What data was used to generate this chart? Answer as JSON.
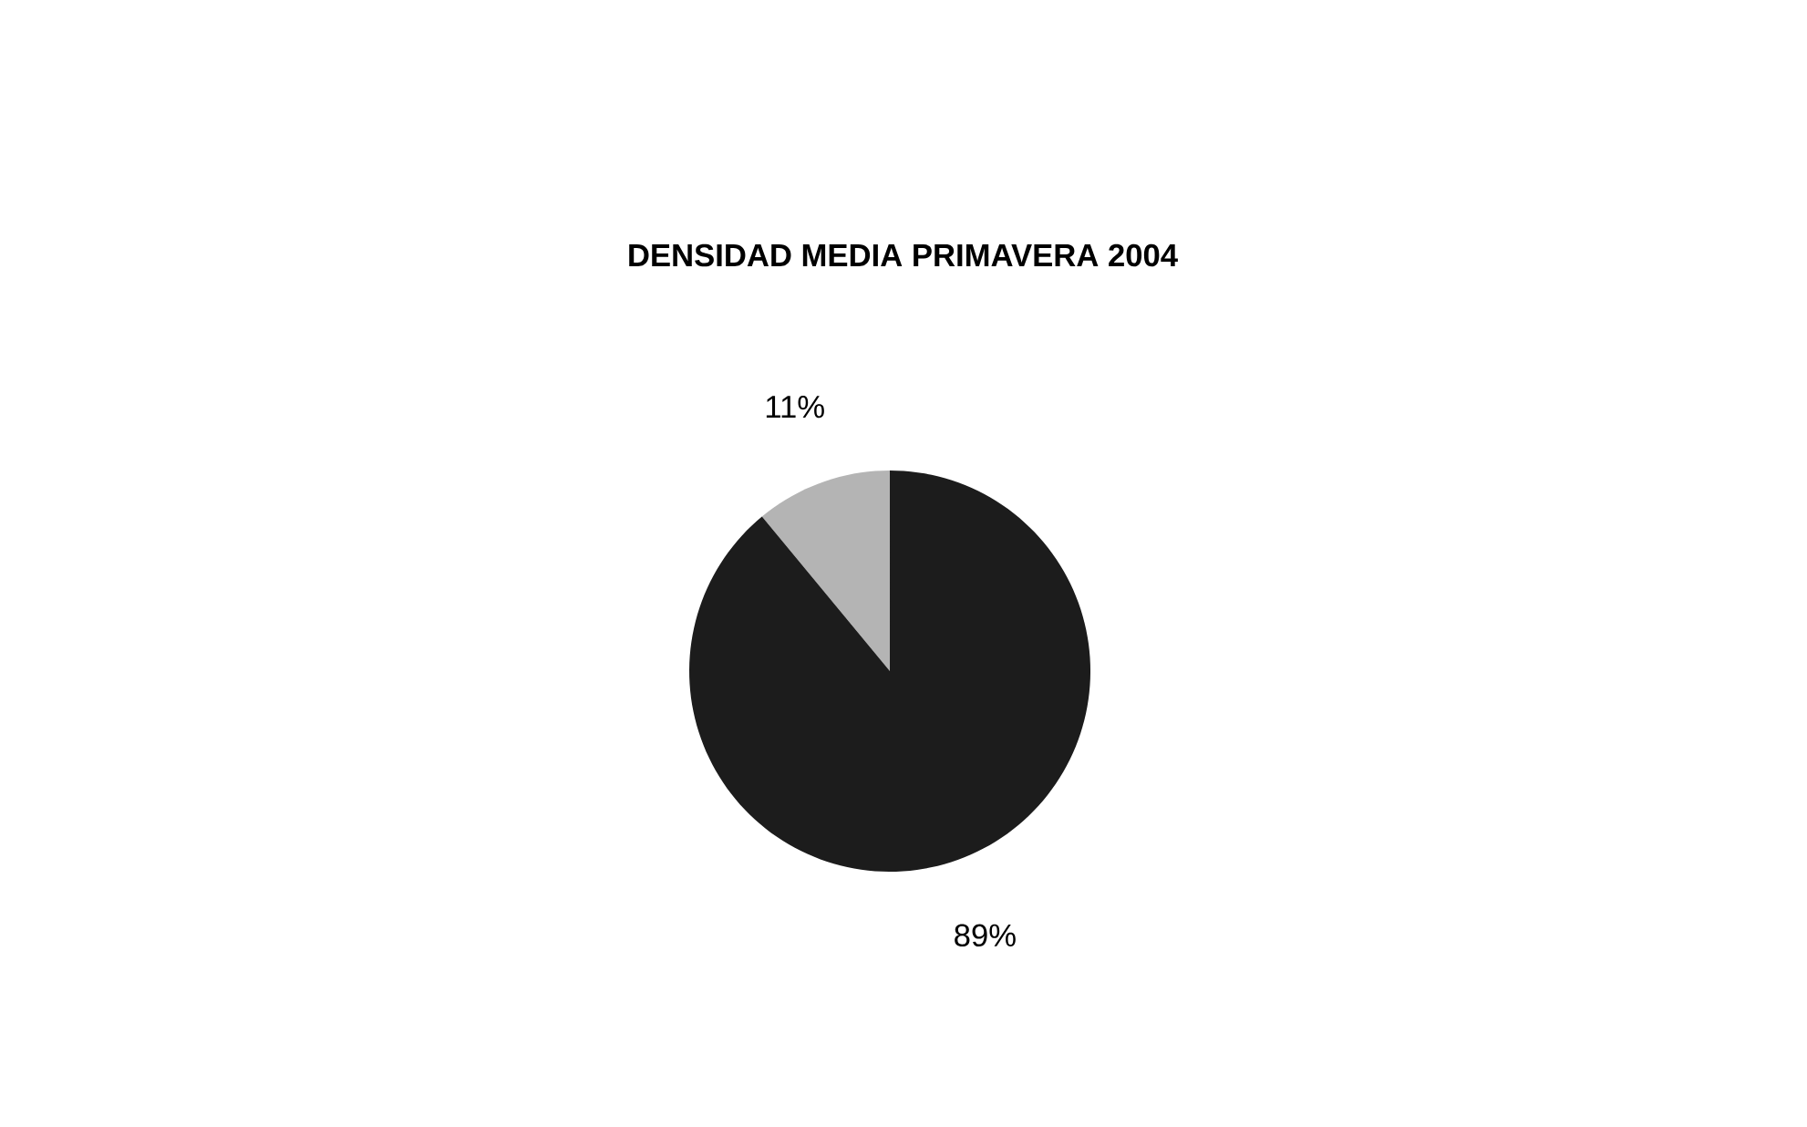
{
  "chart_data": {
    "type": "pie",
    "title": "DENSIDAD MEDIA PRIMAVERA 2004",
    "categories": [
      null,
      null
    ],
    "values": [
      11,
      89
    ],
    "colors": [
      "#b4b4b4",
      "#1c1c1c"
    ],
    "value_labels": [
      "11%",
      "89%"
    ]
  }
}
